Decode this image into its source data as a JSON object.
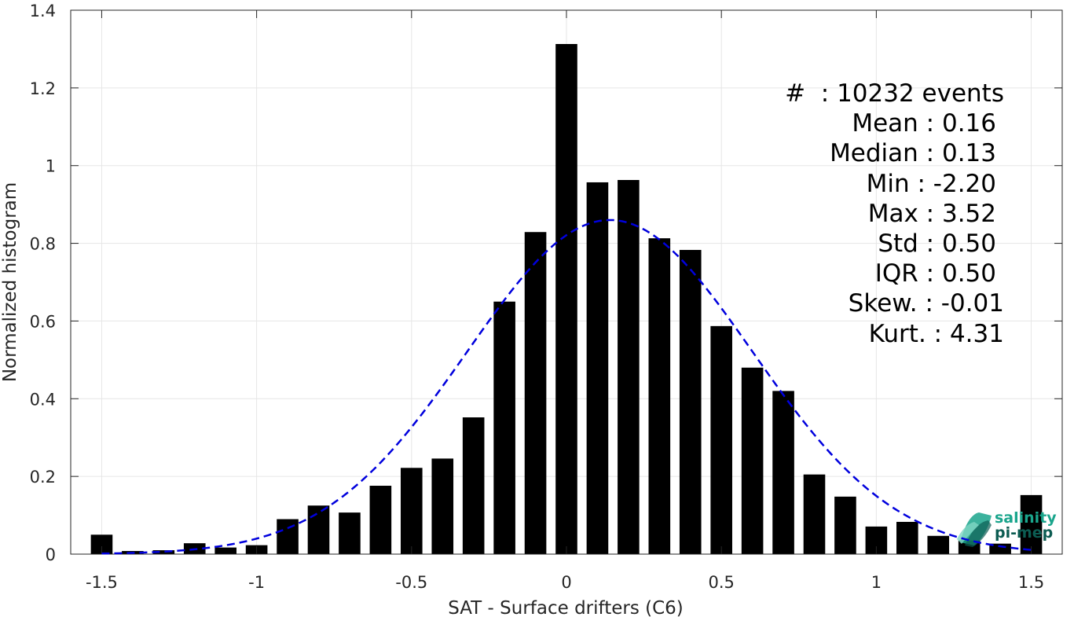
{
  "chart_data": {
    "type": "bar",
    "xlabel": "SAT - Surface drifters (C6)",
    "ylabel": "Normalized histogram",
    "xlim": [
      -1.6,
      1.6
    ],
    "ylim": [
      0,
      1.4
    ],
    "xticks": [
      -1.5,
      -1,
      -0.5,
      0,
      0.5,
      1,
      1.5
    ],
    "xtick_labels": [
      "-1.5",
      "-1",
      "-0.5",
      "0",
      "0.5",
      "1",
      "1.5"
    ],
    "yticks": [
      0,
      0.2,
      0.4,
      0.6,
      0.8,
      1,
      1.2,
      1.4
    ],
    "ytick_labels": [
      "0",
      "0.2",
      "0.4",
      "0.6",
      "0.8",
      "1",
      "1.2",
      "1.4"
    ],
    "grid": true,
    "bar_color": "#000000",
    "bin_width": 0.1,
    "x": [
      -1.5,
      -1.4,
      -1.3,
      -1.2,
      -1.1,
      -1.0,
      -0.9,
      -0.8,
      -0.7,
      -0.6,
      -0.5,
      -0.4,
      -0.3,
      -0.2,
      -0.1,
      0.0,
      0.1,
      0.2,
      0.3,
      0.4,
      0.5,
      0.6,
      0.7,
      0.8,
      0.9,
      1.0,
      1.1,
      1.2,
      1.3,
      1.4,
      1.5
    ],
    "values": [
      0.05,
      0.008,
      0.01,
      0.028,
      0.017,
      0.023,
      0.09,
      0.125,
      0.107,
      0.176,
      0.222,
      0.246,
      0.352,
      0.65,
      0.829,
      1.313,
      0.957,
      0.963,
      0.813,
      0.783,
      0.587,
      0.48,
      0.42,
      0.205,
      0.148,
      0.071,
      0.083,
      0.047,
      0.035,
      0.027,
      0.152
    ],
    "fit_curve": {
      "type": "gaussian",
      "color": "#0000dd",
      "style": "dashed",
      "mean": 0.14,
      "std": 0.46,
      "peak": 0.86,
      "x_range": [
        -1.5,
        1.5
      ]
    },
    "stats": [
      {
        "label": "#  : 10232 events"
      },
      {
        "label": "Mean : 0.16"
      },
      {
        "label": "Median : 0.13"
      },
      {
        "label": "Min : -2.20"
      },
      {
        "label": "Max : 3.52"
      },
      {
        "label": "Std : 0.50"
      },
      {
        "label": "IQR : 0.50"
      },
      {
        "label": "Skew. : -0.01"
      },
      {
        "label": "Kurt. : 4.31"
      }
    ]
  },
  "logo": {
    "line1": "salinity",
    "line2": "pi-mep",
    "color": "#1aa58c",
    "dark_color": "#0c5c52"
  }
}
